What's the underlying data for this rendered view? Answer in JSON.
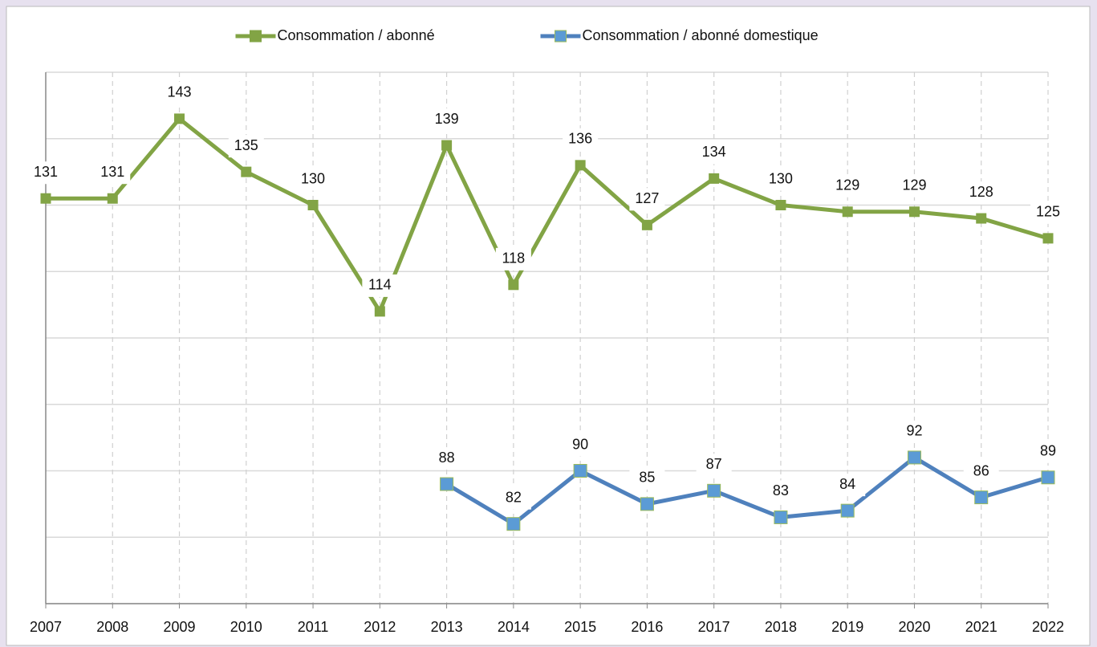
{
  "chart_data": {
    "type": "line",
    "categories": [
      "2007",
      "2008",
      "2009",
      "2010",
      "2011",
      "2012",
      "2013",
      "2014",
      "2015",
      "2016",
      "2017",
      "2018",
      "2019",
      "2020",
      "2021",
      "2022"
    ],
    "series": [
      {
        "name": "Consommation / abonné",
        "color": "#82a445",
        "marker_color": "#82a445",
        "values": [
          131,
          131,
          143,
          135,
          130,
          114,
          139,
          118,
          136,
          127,
          134,
          130,
          129,
          129,
          128,
          125
        ]
      },
      {
        "name": "Consommation / abonné domestique",
        "color": "#4f81bd",
        "marker_color": "#5b9bd5",
        "values": [
          null,
          null,
          null,
          null,
          null,
          null,
          88,
          82,
          90,
          85,
          87,
          83,
          84,
          92,
          86,
          89
        ]
      }
    ],
    "ylim": [
      70,
      150
    ],
    "yticks": [
      70,
      80,
      90,
      100,
      110,
      120,
      130,
      140,
      150
    ],
    "grid": true,
    "legend": "top"
  }
}
